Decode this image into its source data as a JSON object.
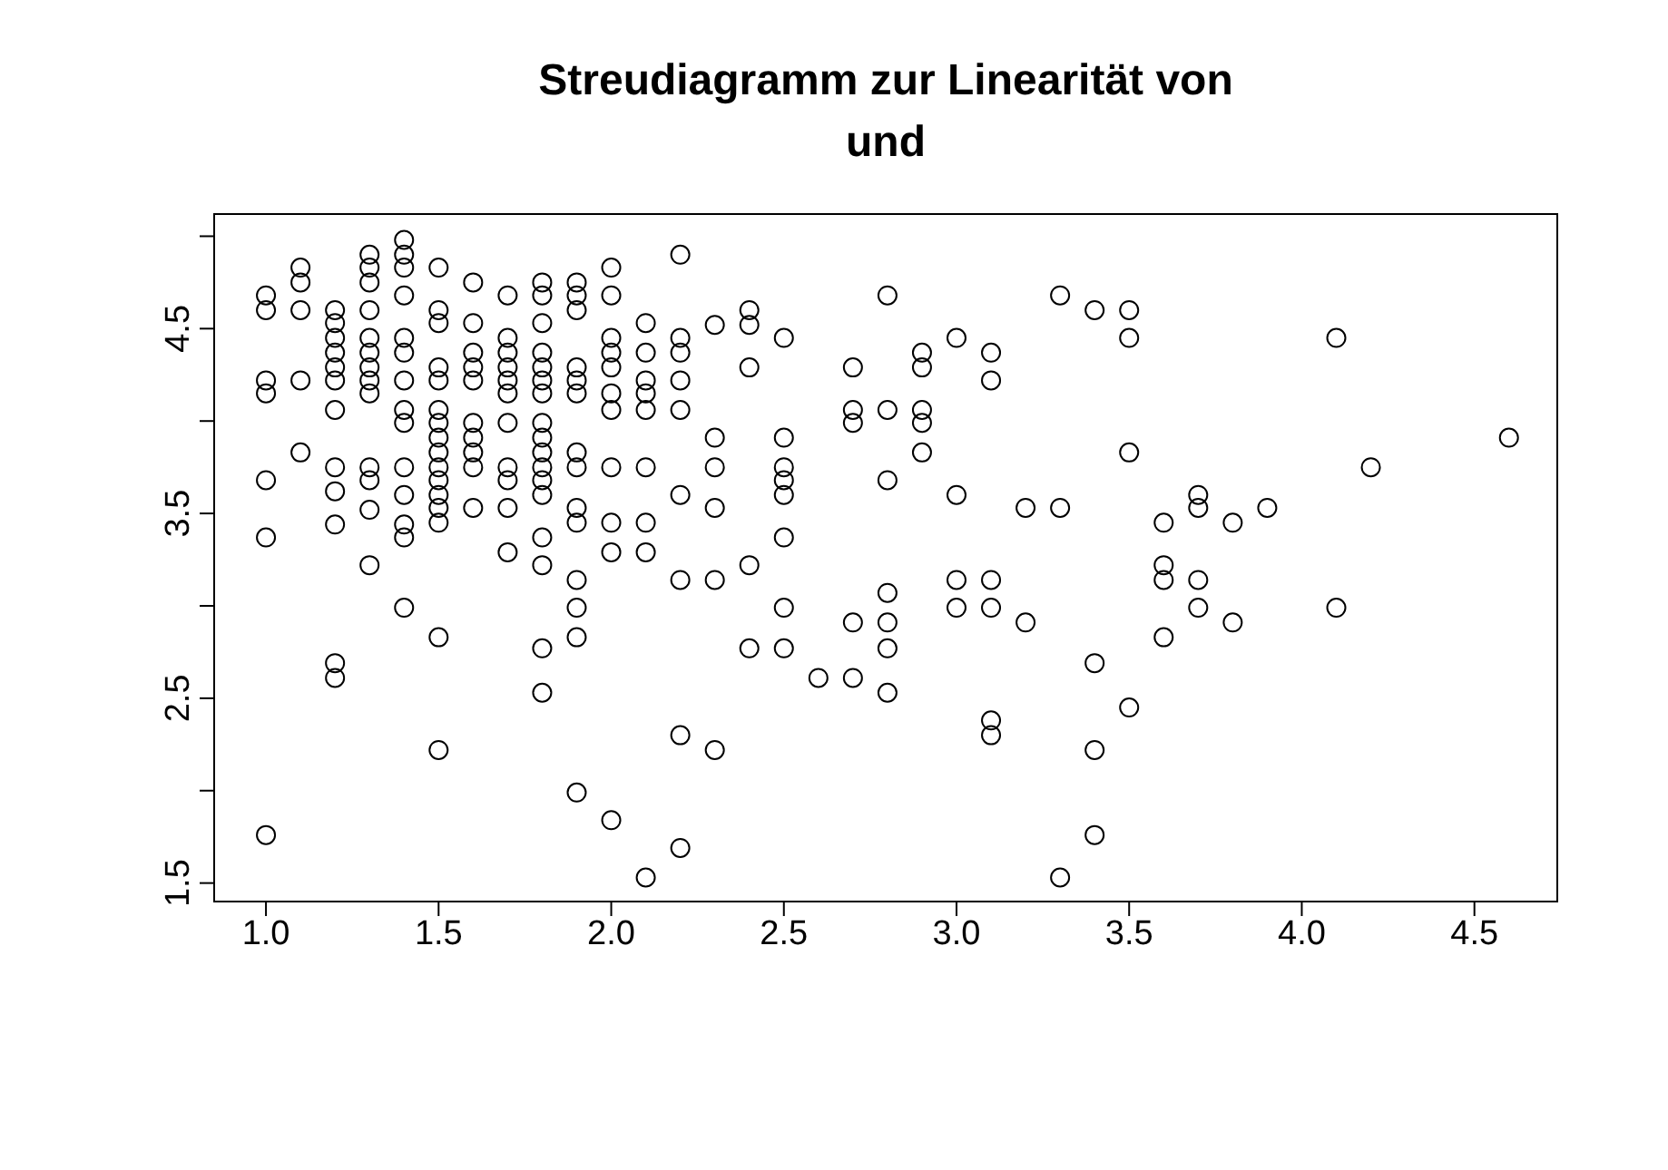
{
  "chart_data": {
    "type": "scatter",
    "title": "Streudiagramm zur Linearität von\nund",
    "x": [
      1.0,
      1.0,
      1.0,
      1.0,
      1.0,
      1.0,
      1.0,
      1.1,
      1.1,
      1.1,
      1.1,
      1.1,
      1.2,
      1.2,
      1.2,
      1.2,
      1.2,
      1.2,
      1.2,
      1.2,
      1.2,
      1.2,
      1.2,
      1.2,
      1.3,
      1.3,
      1.3,
      1.3,
      1.3,
      1.3,
      1.3,
      1.3,
      1.3,
      1.3,
      1.3,
      1.3,
      1.3,
      1.4,
      1.4,
      1.4,
      1.4,
      1.4,
      1.4,
      1.4,
      1.4,
      1.4,
      1.4,
      1.4,
      1.4,
      1.4,
      1.4,
      1.5,
      1.5,
      1.5,
      1.5,
      1.5,
      1.5,
      1.5,
      1.5,
      1.5,
      1.5,
      1.5,
      1.5,
      1.5,
      1.5,
      1.5,
      1.5,
      1.6,
      1.6,
      1.6,
      1.6,
      1.6,
      1.6,
      1.6,
      1.6,
      1.6,
      1.6,
      1.7,
      1.7,
      1.7,
      1.7,
      1.7,
      1.7,
      1.7,
      1.7,
      1.7,
      1.7,
      1.7,
      1.8,
      1.8,
      1.8,
      1.8,
      1.8,
      1.8,
      1.8,
      1.8,
      1.8,
      1.8,
      1.8,
      1.8,
      1.8,
      1.8,
      1.8,
      1.8,
      1.8,
      1.9,
      1.9,
      1.9,
      1.9,
      1.9,
      1.9,
      1.9,
      1.9,
      1.9,
      1.9,
      1.9,
      1.9,
      1.9,
      1.9,
      2.0,
      2.0,
      2.0,
      2.0,
      2.0,
      2.0,
      2.0,
      2.0,
      2.0,
      2.0,
      2.0,
      2.1,
      2.1,
      2.1,
      2.1,
      2.1,
      2.1,
      2.1,
      2.1,
      2.1,
      2.2,
      2.2,
      2.2,
      2.2,
      2.2,
      2.2,
      2.2,
      2.2,
      2.2,
      2.3,
      2.3,
      2.3,
      2.3,
      2.3,
      2.3,
      2.4,
      2.4,
      2.4,
      2.4,
      2.4,
      2.5,
      2.5,
      2.5,
      2.5,
      2.5,
      2.5,
      2.5,
      2.5,
      2.6,
      2.7,
      2.7,
      2.7,
      2.7,
      2.7,
      2.8,
      2.8,
      2.8,
      2.8,
      2.8,
      2.8,
      2.8,
      2.9,
      2.9,
      2.9,
      2.9,
      2.9,
      3.0,
      3.0,
      3.0,
      3.0,
      3.1,
      3.1,
      3.1,
      3.1,
      3.1,
      3.1,
      3.2,
      3.2,
      3.3,
      3.3,
      3.3,
      3.4,
      3.4,
      3.4,
      3.4,
      3.5,
      3.5,
      3.5,
      3.5,
      3.6,
      3.6,
      3.6,
      3.6,
      3.7,
      3.7,
      3.7,
      3.7,
      3.8,
      3.8,
      3.9,
      4.1,
      4.1,
      4.2,
      4.6
    ],
    "values": [
      4.68,
      4.6,
      4.22,
      4.15,
      3.68,
      3.37,
      1.76,
      4.83,
      4.75,
      4.6,
      4.22,
      3.83,
      4.6,
      4.53,
      4.45,
      4.37,
      4.29,
      4.22,
      4.06,
      3.75,
      3.62,
      3.44,
      2.69,
      2.61,
      4.9,
      4.83,
      4.75,
      4.6,
      4.45,
      4.37,
      4.29,
      4.22,
      4.15,
      3.75,
      3.68,
      3.52,
      3.22,
      4.98,
      4.9,
      4.83,
      4.68,
      4.45,
      4.37,
      4.22,
      4.06,
      3.99,
      3.75,
      3.6,
      3.44,
      3.37,
      2.99,
      4.83,
      4.6,
      4.53,
      4.29,
      4.22,
      4.06,
      3.99,
      3.91,
      3.83,
      3.75,
      3.68,
      3.6,
      3.53,
      3.45,
      2.83,
      2.22,
      4.75,
      4.53,
      4.37,
      4.29,
      4.22,
      3.99,
      3.91,
      3.83,
      3.75,
      3.53,
      4.68,
      4.45,
      4.37,
      4.29,
      4.22,
      4.15,
      3.99,
      3.75,
      3.68,
      3.53,
      3.29,
      4.75,
      4.68,
      4.53,
      4.37,
      4.29,
      4.22,
      4.15,
      3.99,
      3.91,
      3.83,
      3.75,
      3.68,
      3.6,
      3.37,
      3.22,
      2.77,
      2.53,
      4.75,
      4.68,
      4.6,
      4.29,
      4.22,
      4.15,
      3.83,
      3.75,
      3.53,
      3.45,
      3.14,
      2.99,
      2.83,
      1.99,
      4.83,
      4.68,
      4.45,
      4.37,
      4.29,
      4.15,
      4.06,
      3.75,
      3.45,
      3.29,
      1.84,
      4.53,
      4.37,
      4.22,
      4.15,
      4.06,
      3.75,
      3.45,
      3.29,
      1.53,
      4.9,
      4.45,
      4.37,
      4.22,
      4.06,
      3.6,
      3.14,
      2.3,
      1.69,
      4.52,
      3.91,
      3.75,
      3.53,
      3.14,
      2.22,
      4.6,
      4.52,
      4.29,
      3.22,
      2.77,
      4.45,
      3.91,
      3.75,
      3.68,
      3.6,
      3.37,
      2.99,
      2.77,
      2.61,
      4.29,
      4.06,
      3.99,
      2.91,
      2.61,
      4.68,
      4.06,
      3.68,
      3.07,
      2.91,
      2.77,
      2.53,
      4.37,
      4.29,
      4.06,
      3.99,
      3.83,
      4.45,
      3.6,
      3.14,
      2.99,
      4.37,
      4.22,
      3.14,
      2.99,
      2.38,
      2.3,
      3.53,
      2.91,
      4.68,
      3.53,
      1.53,
      4.6,
      2.69,
      2.22,
      1.76,
      4.6,
      4.45,
      3.83,
      2.45,
      3.45,
      3.22,
      3.14,
      2.83,
      3.6,
      3.53,
      3.14,
      2.99,
      3.45,
      2.91,
      3.53,
      4.45,
      2.99,
      3.75,
      3.91
    ],
    "color": "#000000",
    "marker": "circle",
    "grid": false,
    "legend": false,
    "xlim": [
      0.85,
      4.74
    ],
    "ylim": [
      1.4,
      5.12
    ],
    "xticks": [
      {
        "value": 1,
        "label": "1.0"
      },
      1.5,
      {
        "value": 2,
        "label": "2.0"
      },
      2.5,
      {
        "value": 3,
        "label": "3.0"
      },
      3.5,
      {
        "value": 4,
        "label": "4.0"
      },
      4.5
    ],
    "yticks": [
      1.5,
      {
        "value": 2,
        "label": null
      },
      2.5,
      {
        "value": 3,
        "label": null
      },
      3.5,
      {
        "value": 4,
        "label": null
      },
      4.5,
      {
        "value": 5,
        "label": null
      }
    ]
  }
}
